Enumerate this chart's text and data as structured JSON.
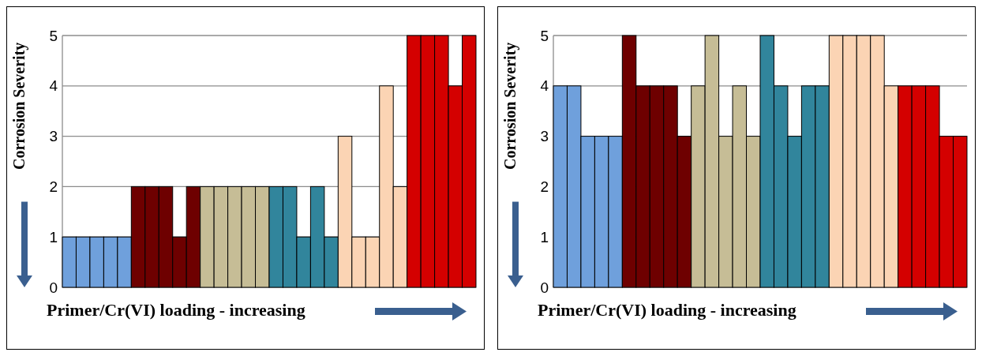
{
  "chart_data": [
    {
      "type": "bar",
      "categories": [
        null,
        null,
        null,
        null,
        null,
        null,
        null,
        null,
        null,
        null,
        null,
        null,
        null,
        null,
        null,
        null,
        null,
        null,
        null,
        null,
        null,
        null,
        null,
        null,
        null,
        null,
        null,
        null,
        null,
        null
      ],
      "values": [
        1,
        1,
        1,
        1,
        1,
        2,
        2,
        2,
        1,
        2,
        2,
        2,
        2,
        2,
        2,
        2,
        2,
        1,
        2,
        1,
        3,
        1,
        1,
        4,
        2,
        5,
        5,
        5,
        4,
        5
      ],
      "colors": [
        "#6fa0dc",
        "#6fa0dc",
        "#6fa0dc",
        "#6fa0dc",
        "#6fa0dc",
        "#6e0000",
        "#6e0000",
        "#6e0000",
        "#6e0000",
        "#6e0000",
        "#c6bd96",
        "#c6bd96",
        "#c6bd96",
        "#c6bd96",
        "#c6bd96",
        "#31859c",
        "#31859c",
        "#31859c",
        "#31859c",
        "#31859c",
        "#fbd4b4",
        "#fbd4b4",
        "#fbd4b4",
        "#fbd4b4",
        "#fbd4b4",
        "#d40000",
        "#d40000",
        "#d40000",
        "#d40000",
        "#d40000"
      ],
      "xlabel": "Primer/Cr(VI) loading - increasing",
      "ylabel": "Corrosion Severity",
      "ylim": [
        0,
        5
      ],
      "yticks": [
        0,
        1,
        2,
        3,
        4,
        5
      ],
      "grid": "y"
    },
    {
      "type": "bar",
      "categories": [
        null,
        null,
        null,
        null,
        null,
        null,
        null,
        null,
        null,
        null,
        null,
        null,
        null,
        null,
        null,
        null,
        null,
        null,
        null,
        null,
        null,
        null,
        null,
        null,
        null,
        null,
        null,
        null,
        null,
        null
      ],
      "values": [
        4,
        4,
        3,
        3,
        3,
        5,
        4,
        4,
        4,
        3,
        4,
        5,
        3,
        4,
        3,
        5,
        4,
        3,
        4,
        4,
        5,
        5,
        5,
        5,
        4,
        4,
        4,
        4,
        3,
        3
      ],
      "colors": [
        "#6fa0dc",
        "#6fa0dc",
        "#6fa0dc",
        "#6fa0dc",
        "#6fa0dc",
        "#6e0000",
        "#6e0000",
        "#6e0000",
        "#6e0000",
        "#6e0000",
        "#c6bd96",
        "#c6bd96",
        "#c6bd96",
        "#c6bd96",
        "#c6bd96",
        "#31859c",
        "#31859c",
        "#31859c",
        "#31859c",
        "#31859c",
        "#fbd4b4",
        "#fbd4b4",
        "#fbd4b4",
        "#fbd4b4",
        "#fbd4b4",
        "#d40000",
        "#d40000",
        "#d40000",
        "#d40000",
        "#d40000"
      ],
      "xlabel": "Primer/Cr(VI) loading - increasing",
      "ylabel": "Corrosion Severity",
      "ylim": [
        0,
        5
      ],
      "yticks": [
        0,
        1,
        2,
        3,
        4,
        5
      ],
      "grid": "y"
    }
  ]
}
